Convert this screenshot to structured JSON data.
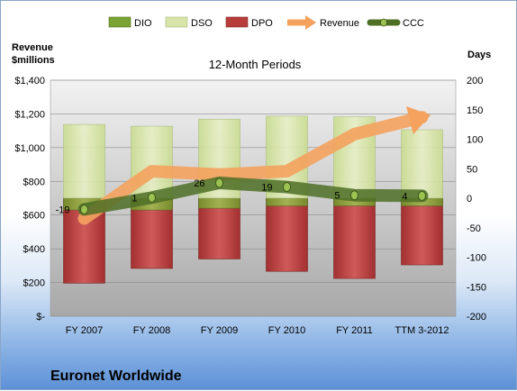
{
  "chart_data": {
    "type": "bar",
    "title": "12-Month Periods",
    "left_axis_label": "Revenue\n$millions",
    "right_axis_label": "Days",
    "company": "Euronet Worldwide",
    "categories": [
      "FY 2007",
      "FY 2008",
      "FY 2009",
      "FY 2010",
      "FY 2011",
      "TTM 3-2012"
    ],
    "left_axis": {
      "min": 0,
      "max": 1400,
      "step": 200,
      "ticks": [
        "$-",
        "$200",
        "$400",
        "$600",
        "$800",
        "$1,000",
        "$1,200",
        "$1,400"
      ]
    },
    "right_axis": {
      "min": -200,
      "max": 200,
      "step": 50,
      "ticks": [
        "-200",
        "-150",
        "-100",
        "-50",
        "0",
        "50",
        "100",
        "150",
        "200"
      ]
    },
    "legend": [
      "DIO",
      "DSO",
      "DPO",
      "Revenue",
      "CCC"
    ],
    "legend_position": "top",
    "series": [
      {
        "name": "DIO",
        "axis": "right",
        "stack": "positive",
        "values": [
          -20,
          -20,
          -17,
          -13,
          -13,
          -13
        ]
      },
      {
        "name": "DSO",
        "axis": "right",
        "stack": "positive",
        "values": [
          125,
          122,
          134,
          139,
          138,
          116
        ]
      },
      {
        "name": "DPO",
        "axis": "right",
        "stack": "negative",
        "values": [
          -144,
          -119,
          -103,
          -124,
          -136,
          -113
        ]
      },
      {
        "name": "Revenue",
        "axis": "left",
        "type": "line",
        "values": [
          580,
          860,
          840,
          860,
          1080,
          1180
        ]
      },
      {
        "name": "CCC",
        "axis": "right",
        "type": "line",
        "values": [
          -19,
          1,
          26,
          19,
          5,
          4
        ]
      }
    ],
    "colors": {
      "DIO": "#7aa334",
      "DSO": "#d8e4a8",
      "DPO": "#b93c3c",
      "Revenue": "#f4a25e",
      "CCC": "#5d7d32",
      "plot_bg": "#c9c9c9"
    }
  }
}
